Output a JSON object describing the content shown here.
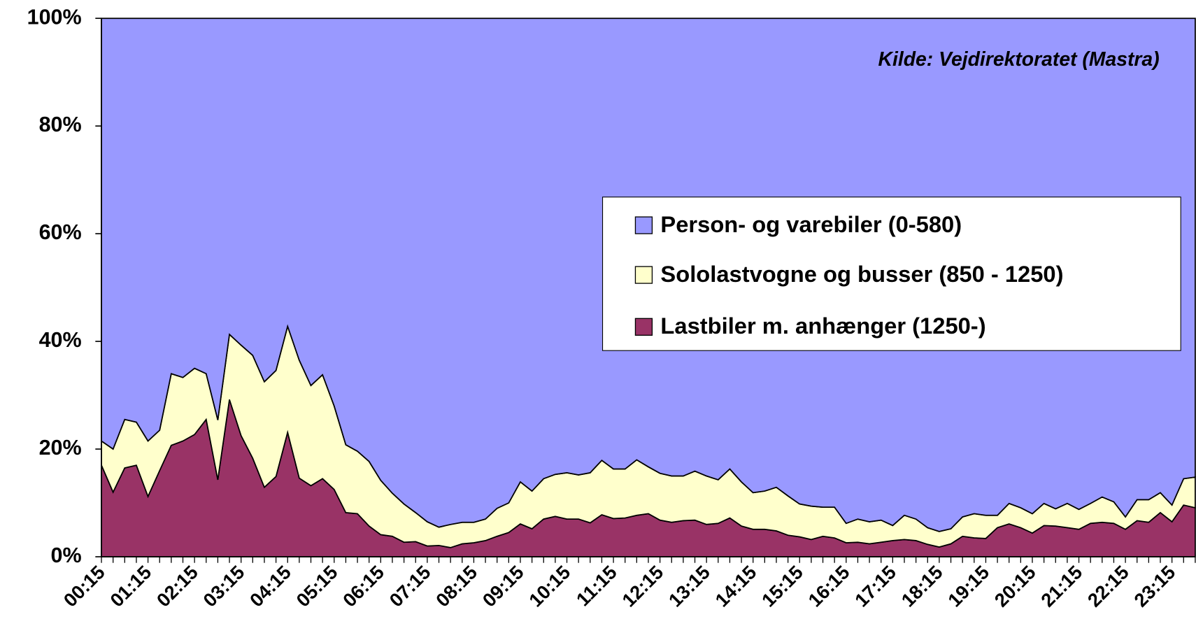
{
  "chart_data": {
    "type": "stacked_area",
    "annotation": "Kilde: Vejdirektoratet (Mastra)",
    "categories": [
      "00:15",
      null,
      null,
      null,
      "01:15",
      null,
      null,
      null,
      "02:15",
      null,
      null,
      null,
      "03:15",
      null,
      null,
      null,
      "04:15",
      null,
      null,
      null,
      "05:15",
      null,
      null,
      null,
      "06:15",
      null,
      null,
      null,
      "07:15",
      null,
      null,
      null,
      "08:15",
      null,
      null,
      null,
      "09:15",
      null,
      null,
      null,
      "10:15",
      null,
      null,
      null,
      "11:15",
      null,
      null,
      null,
      "12:15",
      null,
      null,
      null,
      "13:15",
      null,
      null,
      null,
      "14:15",
      null,
      null,
      null,
      "15:15",
      null,
      null,
      null,
      "16:15",
      null,
      null,
      null,
      "17:15",
      null,
      null,
      null,
      "18:15",
      null,
      null,
      null,
      "19:15",
      null,
      null,
      null,
      "20:15",
      null,
      null,
      null,
      "21:15",
      null,
      null,
      null,
      "22:15",
      null,
      null,
      null,
      "23:15",
      null,
      null
    ],
    "series": [
      {
        "name": "Person- og varebiler (0-580)",
        "color": "#9999ff",
        "values": [
          78.5,
          80,
          74.5,
          75,
          78.5,
          76.5,
          66,
          66.7,
          65,
          66,
          74.6,
          58.7,
          60.7,
          62.6,
          67.5,
          65.4,
          57.2,
          63.5,
          68.2,
          66.2,
          72,
          79.2,
          80.4,
          82.3,
          85.8,
          88.2,
          90.2,
          91.8,
          93.5,
          94.5,
          94,
          93.6,
          93.6,
          93,
          91,
          90,
          86.1,
          87.8,
          85.5,
          84.7,
          84.4,
          84.8,
          84.4,
          82.1,
          83.7,
          83.7,
          82,
          83.3,
          84.5,
          85,
          85,
          84.1,
          85,
          85.7,
          83.7,
          86.1,
          88.1,
          87.8,
          87.1,
          88.7,
          90.2,
          90.6,
          90.8,
          90.8,
          93.8,
          93,
          93.5,
          93.2,
          94.2,
          92.3,
          93,
          94.6,
          95.3,
          94.8,
          92.6,
          92,
          92.3,
          92.3,
          90.1,
          90.9,
          92,
          90.1,
          91.1,
          90.1,
          91.2,
          90.1,
          88.9,
          89.8,
          92.6,
          89.4,
          89.4,
          88.1,
          90.4,
          85.5,
          85.2
        ]
      },
      {
        "name": "Sololastvogne og busser (850 - 1250)",
        "color": "#ffffcc",
        "values": [
          4.5,
          8,
          9,
          8,
          10.3,
          7.5,
          13.3,
          11.8,
          12.3,
          8.5,
          11.1,
          12.1,
          16.8,
          19.1,
          19.6,
          19.7,
          19.7,
          21.9,
          18.6,
          19.3,
          15.5,
          12.6,
          11.6,
          12,
          10.1,
          8,
          7.1,
          5.4,
          4.5,
          3.4,
          4.3,
          4,
          3.8,
          4,
          5.2,
          5.5,
          7.8,
          7,
          7.5,
          7.8,
          8.6,
          8.2,
          9.3,
          10.1,
          9.2,
          9.1,
          10.3,
          8.7,
          8.7,
          8.6,
          8.3,
          9.1,
          9,
          8.1,
          9.1,
          8.2,
          6.8,
          7.1,
          8.1,
          7.3,
          6.1,
          6.2,
          5.4,
          5.7,
          3.6,
          4.3,
          4.1,
          4.1,
          2.8,
          4.5,
          4,
          3.1,
          2.9,
          2.8,
          3.6,
          4.5,
          4.3,
          2.3,
          3.8,
          3.7,
          3.6,
          4.1,
          3.2,
          4.5,
          3.7,
          3.7,
          4.7,
          4,
          2.3,
          3.9,
          4.2,
          3.7,
          3.1,
          4.9,
          5.7
        ]
      },
      {
        "name": "Lastbiler m. anhænger (1250-)",
        "color": "#993366",
        "values": [
          17,
          12,
          16.5,
          17,
          11.2,
          16,
          20.7,
          21.5,
          22.7,
          25.5,
          14.3,
          29.2,
          22.5,
          18.3,
          12.9,
          14.9,
          23.1,
          14.6,
          13.2,
          14.5,
          12.5,
          8.2,
          8,
          5.7,
          4.1,
          3.8,
          2.7,
          2.8,
          2,
          2.1,
          1.7,
          2.4,
          2.6,
          3,
          3.8,
          4.5,
          6.1,
          5.2,
          7,
          7.5,
          7,
          7,
          6.3,
          7.8,
          7.1,
          7.2,
          7.7,
          8,
          6.8,
          6.4,
          6.7,
          6.8,
          6,
          6.2,
          7.2,
          5.7,
          5.1,
          5.1,
          4.8,
          4,
          3.7,
          3.2,
          3.8,
          3.5,
          2.6,
          2.7,
          2.4,
          2.7,
          3,
          3.2,
          3,
          2.3,
          1.8,
          2.4,
          3.8,
          3.5,
          3.4,
          5.4,
          6.1,
          5.4,
          4.4,
          5.8,
          5.7,
          5.4,
          5.1,
          6.2,
          6.4,
          6.2,
          5.1,
          6.7,
          6.4,
          8.2,
          6.5,
          9.6,
          9.1
        ]
      }
    ],
    "ylim": [
      0,
      100
    ],
    "yticks": [
      {
        "value": 0,
        "label": "0%"
      },
      {
        "value": 20,
        "label": "20%"
      },
      {
        "value": 40,
        "label": "40%"
      },
      {
        "value": 60,
        "label": "60%"
      },
      {
        "value": 80,
        "label": "80%"
      },
      {
        "value": 100,
        "label": "100%"
      }
    ],
    "legend": "right"
  }
}
